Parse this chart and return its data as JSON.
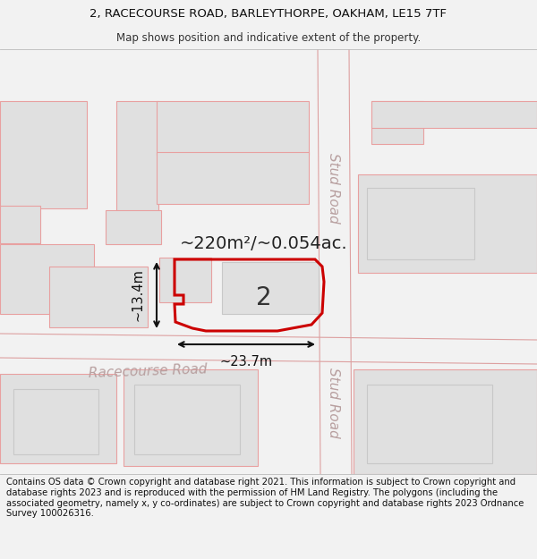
{
  "title_line1": "2, RACECOURSE ROAD, BARLEYTHORPE, OAKHAM, LE15 7TF",
  "title_line2": "Map shows position and indicative extent of the property.",
  "footer_text": "Contains OS data © Crown copyright and database right 2021. This information is subject to Crown copyright and database rights 2023 and is reproduced with the permission of HM Land Registry. The polygons (including the associated geometry, namely x, y co-ordinates) are subject to Crown copyright and database rights 2023 Ordnance Survey 100026316.",
  "area_label": "~220m²/~0.054ac.",
  "width_label": "~23.7m",
  "height_label": "~13.4m",
  "plot_number": "2",
  "road_label_racecourse": "Racecourse Road",
  "road_label_stud_top": "Stud Road",
  "road_label_stud_bottom": "Stud Road",
  "bg_color": "#f2f2f2",
  "map_bg": "#f2f2f2",
  "building_fill": "#e0e0e0",
  "building_edge_red": "#e8a0a0",
  "building_edge_gray": "#c8c8c8",
  "road_line_color": "#dda0a0",
  "plot_edge_color": "#cc0000",
  "dim_line_color": "#111111",
  "road_label_color": "#b8a0a0",
  "title_fontsize": 9.5,
  "subtitle_fontsize": 8.5,
  "footer_fontsize": 7.2,
  "area_fontsize": 14,
  "plot_num_fontsize": 20,
  "dim_fontsize": 10.5,
  "road_fontsize": 11
}
